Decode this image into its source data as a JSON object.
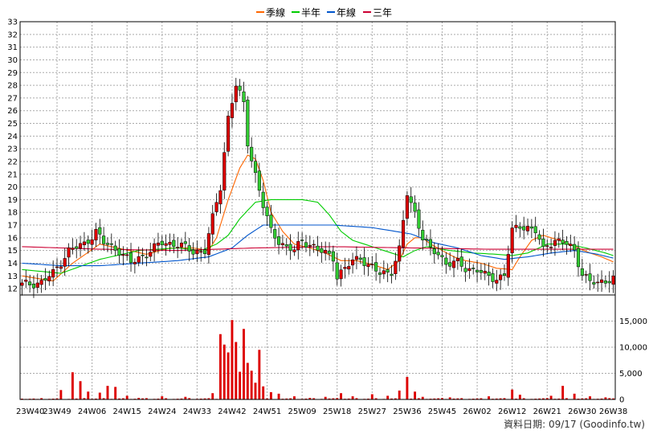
{
  "legend": [
    {
      "label": "季線",
      "color": "#ff6600"
    },
    {
      "label": "半年",
      "color": "#00cc00"
    },
    {
      "label": "年線",
      "color": "#0055cc"
    },
    {
      "label": "三年",
      "color": "#cc0033"
    }
  ],
  "footer_text": "資料日期: 09/17 (Goodinfo.tw)",
  "colors": {
    "up": "#dd0000",
    "down": "#33cc33",
    "volume": "#dd0000",
    "grid": "#aaaaaa",
    "frame": "#000000"
  },
  "chart_data": {
    "type": "candlestick",
    "price_axis": {
      "min": 11.5,
      "max": 33,
      "ticks": [
        12,
        13,
        14,
        15,
        16,
        17,
        18,
        19,
        20,
        21,
        22,
        23,
        24,
        25,
        26,
        27,
        28,
        29,
        30,
        31,
        32,
        33
      ]
    },
    "volume_axis": {
      "min": 0,
      "max": 20000,
      "ticks": [
        0,
        5000,
        10000,
        15000
      ],
      "tick_labels": [
        "0",
        "5,000",
        "10,000",
        "15,000"
      ]
    },
    "x_axis": {
      "labels": [
        "23W40",
        "23W49",
        "24W06",
        "24W15",
        "24W24",
        "24W33",
        "24W42",
        "24W51",
        "25W09",
        "25W18",
        "25W27",
        "25W36",
        "25W45",
        "26W02",
        "26W12",
        "26W21",
        "26W30",
        "26W38"
      ],
      "label_bar_index": [
        0,
        9,
        18,
        27,
        36,
        45,
        54,
        63,
        72,
        81,
        90,
        99,
        108,
        117,
        126,
        135,
        144,
        152
      ]
    },
    "bar_count": 153,
    "close_keypoints": [
      [
        0,
        12.3
      ],
      [
        5,
        12.5
      ],
      [
        8,
        13.2
      ],
      [
        12,
        15.0
      ],
      [
        16,
        15.5
      ],
      [
        19,
        16.5
      ],
      [
        21,
        15.6
      ],
      [
        25,
        15.0
      ],
      [
        28,
        14.0
      ],
      [
        32,
        14.8
      ],
      [
        36,
        15.6
      ],
      [
        40,
        15.5
      ],
      [
        44,
        14.9
      ],
      [
        47,
        15.0
      ],
      [
        49,
        17.5
      ],
      [
        51,
        20.0
      ],
      [
        53,
        25.5
      ],
      [
        55,
        28.0
      ],
      [
        57,
        26.5
      ],
      [
        58,
        23.5
      ],
      [
        60,
        21.0
      ],
      [
        62,
        18.5
      ],
      [
        64,
        16.5
      ],
      [
        66,
        15.8
      ],
      [
        68,
        15.2
      ],
      [
        70,
        15.0
      ],
      [
        72,
        15.8
      ],
      [
        74,
        15.5
      ],
      [
        76,
        15.0
      ],
      [
        78,
        14.8
      ],
      [
        80,
        14.5
      ],
      [
        81,
        13.0
      ],
      [
        83,
        13.5
      ],
      [
        85,
        14.2
      ],
      [
        87,
        14.5
      ],
      [
        89,
        13.8
      ],
      [
        92,
        13.2
      ],
      [
        95,
        13.4
      ],
      [
        97,
        15.0
      ],
      [
        99,
        19.5
      ],
      [
        101,
        18.0
      ],
      [
        103,
        16.0
      ],
      [
        105,
        15.0
      ],
      [
        107,
        14.8
      ],
      [
        109,
        14.0
      ],
      [
        112,
        14.0
      ],
      [
        114,
        13.6
      ],
      [
        117,
        13.5
      ],
      [
        119,
        13.0
      ],
      [
        122,
        12.8
      ],
      [
        124,
        13.1
      ],
      [
        126,
        16.5
      ],
      [
        128,
        17.0
      ],
      [
        130,
        16.8
      ],
      [
        132,
        16.5
      ],
      [
        134,
        15.0
      ],
      [
        135,
        15.5
      ],
      [
        137,
        15.8
      ],
      [
        140,
        15.5
      ],
      [
        142,
        15.0
      ],
      [
        144,
        13.2
      ],
      [
        146,
        12.5
      ],
      [
        148,
        12.4
      ],
      [
        150,
        12.7
      ],
      [
        152,
        12.8
      ]
    ],
    "ma_quarter_keypoints": [
      [
        0,
        13.0
      ],
      [
        8,
        12.6
      ],
      [
        13,
        14.0
      ],
      [
        20,
        15.5
      ],
      [
        26,
        15.1
      ],
      [
        32,
        14.7
      ],
      [
        38,
        15.2
      ],
      [
        44,
        15.2
      ],
      [
        48,
        15.0
      ],
      [
        50,
        16.0
      ],
      [
        53,
        19.0
      ],
      [
        56,
        21.5
      ],
      [
        58,
        22.5
      ],
      [
        60,
        22.2
      ],
      [
        62,
        20.5
      ],
      [
        64,
        18.0
      ],
      [
        67,
        16.5
      ],
      [
        70,
        15.5
      ],
      [
        74,
        15.2
      ],
      [
        78,
        14.8
      ],
      [
        82,
        14.2
      ],
      [
        86,
        14.2
      ],
      [
        90,
        13.9
      ],
      [
        94,
        13.5
      ],
      [
        97,
        14.2
      ],
      [
        99,
        15.5
      ],
      [
        101,
        16.0
      ],
      [
        103,
        16.0
      ],
      [
        105,
        15.5
      ],
      [
        108,
        15.0
      ],
      [
        111,
        14.5
      ],
      [
        114,
        14.2
      ],
      [
        118,
        14.0
      ],
      [
        122,
        13.6
      ],
      [
        126,
        13.5
      ],
      [
        128,
        14.5
      ],
      [
        131,
        15.8
      ],
      [
        134,
        16.2
      ],
      [
        137,
        15.9
      ],
      [
        140,
        15.6
      ],
      [
        143,
        15.2
      ],
      [
        146,
        14.8
      ],
      [
        149,
        14.5
      ],
      [
        152,
        14.1
      ]
    ],
    "ma_half_keypoints": [
      [
        0,
        13.5
      ],
      [
        10,
        13.2
      ],
      [
        20,
        14.3
      ],
      [
        30,
        15.0
      ],
      [
        40,
        15.2
      ],
      [
        46,
        15.0
      ],
      [
        50,
        15.5
      ],
      [
        53,
        16.2
      ],
      [
        56,
        17.5
      ],
      [
        60,
        18.8
      ],
      [
        64,
        19.0
      ],
      [
        68,
        19.0
      ],
      [
        72,
        19.0
      ],
      [
        76,
        18.8
      ],
      [
        79,
        17.8
      ],
      [
        82,
        16.5
      ],
      [
        85,
        15.8
      ],
      [
        90,
        15.3
      ],
      [
        95,
        14.8
      ],
      [
        98,
        14.5
      ],
      [
        101,
        15.0
      ],
      [
        104,
        15.3
      ],
      [
        110,
        15.0
      ],
      [
        116,
        14.8
      ],
      [
        122,
        14.7
      ],
      [
        126,
        14.6
      ],
      [
        130,
        14.8
      ],
      [
        135,
        15.5
      ],
      [
        140,
        15.5
      ],
      [
        145,
        15.2
      ],
      [
        150,
        14.8
      ],
      [
        152,
        14.6
      ]
    ],
    "ma_year_keypoints": [
      [
        0,
        14.0
      ],
      [
        10,
        13.8
      ],
      [
        20,
        13.8
      ],
      [
        30,
        14.0
      ],
      [
        40,
        14.2
      ],
      [
        48,
        14.5
      ],
      [
        54,
        15.2
      ],
      [
        58,
        16.2
      ],
      [
        62,
        17.0
      ],
      [
        70,
        17.0
      ],
      [
        80,
        17.0
      ],
      [
        90,
        16.8
      ],
      [
        96,
        16.5
      ],
      [
        100,
        16.3
      ],
      [
        106,
        15.6
      ],
      [
        112,
        15.2
      ],
      [
        118,
        14.6
      ],
      [
        124,
        14.3
      ],
      [
        130,
        14.5
      ],
      [
        136,
        14.8
      ],
      [
        142,
        15.0
      ],
      [
        148,
        14.7
      ],
      [
        152,
        14.4
      ]
    ],
    "ma_3year_keypoints": [
      [
        0,
        15.3
      ],
      [
        20,
        15.1
      ],
      [
        40,
        15.0
      ],
      [
        60,
        15.2
      ],
      [
        80,
        15.3
      ],
      [
        100,
        15.2
      ],
      [
        120,
        15.1
      ],
      [
        140,
        15.1
      ],
      [
        152,
        15.1
      ]
    ],
    "volume_peaks": [
      [
        0,
        150
      ],
      [
        4,
        100
      ],
      [
        10,
        1800
      ],
      [
        13,
        5200
      ],
      [
        15,
        3500
      ],
      [
        17,
        1500
      ],
      [
        20,
        1300
      ],
      [
        22,
        2600
      ],
      [
        24,
        2400
      ],
      [
        27,
        700
      ],
      [
        30,
        300
      ],
      [
        36,
        600
      ],
      [
        42,
        500
      ],
      [
        49,
        1200
      ],
      [
        51,
        12500
      ],
      [
        52,
        10500
      ],
      [
        53,
        9000
      ],
      [
        54,
        15200
      ],
      [
        55,
        11000
      ],
      [
        56,
        5300
      ],
      [
        57,
        13500
      ],
      [
        58,
        7000
      ],
      [
        59,
        5500
      ],
      [
        60,
        3200
      ],
      [
        61,
        9500
      ],
      [
        62,
        2500
      ],
      [
        64,
        1400
      ],
      [
        66,
        1100
      ],
      [
        70,
        600
      ],
      [
        74,
        300
      ],
      [
        78,
        500
      ],
      [
        82,
        1200
      ],
      [
        85,
        600
      ],
      [
        90,
        1000
      ],
      [
        94,
        700
      ],
      [
        97,
        1700
      ],
      [
        99,
        4300
      ],
      [
        101,
        1500
      ],
      [
        103,
        500
      ],
      [
        110,
        400
      ],
      [
        120,
        600
      ],
      [
        126,
        1900
      ],
      [
        128,
        900
      ],
      [
        136,
        700
      ],
      [
        139,
        2600
      ],
      [
        142,
        1100
      ],
      [
        146,
        600
      ],
      [
        150,
        400
      ],
      [
        152,
        200
      ]
    ]
  }
}
